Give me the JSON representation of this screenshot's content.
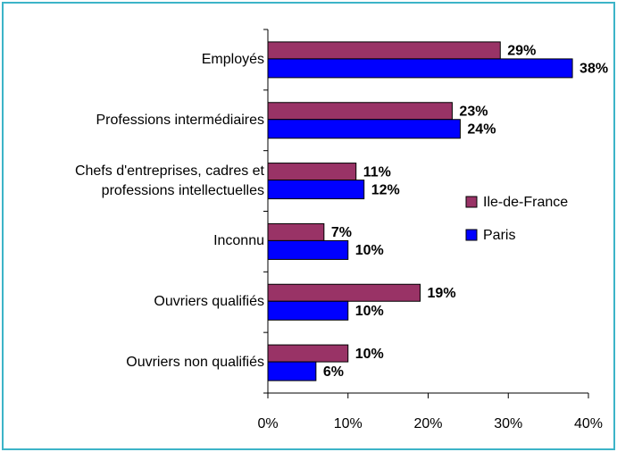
{
  "chart_data": {
    "type": "bar",
    "orientation": "horizontal",
    "categories": [
      "Employés",
      "Professions intermédiaires",
      "Chefs d'entreprises, cadres et professions intellectuelles",
      "Inconnu",
      "Ouvriers qualifiés",
      "Ouvriers non qualifiés"
    ],
    "series": [
      {
        "name": "Ile-de-France",
        "color": "#993366",
        "values": [
          29,
          23,
          11,
          7,
          19,
          10
        ],
        "value_labels": [
          "29%",
          "23%",
          "11%",
          "7%",
          "19%",
          "10%"
        ]
      },
      {
        "name": "Paris",
        "color": "#0000ff",
        "values": [
          38,
          24,
          12,
          10,
          10,
          6
        ],
        "value_labels": [
          "38%",
          "24%",
          "12%",
          "10%",
          "10%",
          "6%"
        ]
      }
    ],
    "xlim": [
      0,
      40
    ],
    "xticks": [
      {
        "value": 0,
        "label": "0%"
      },
      {
        "value": 10,
        "label": "10%"
      },
      {
        "value": 20,
        "label": "20%"
      },
      {
        "value": 30,
        "label": "30%"
      },
      {
        "value": 40,
        "label": "40%"
      }
    ],
    "legend": "right"
  }
}
